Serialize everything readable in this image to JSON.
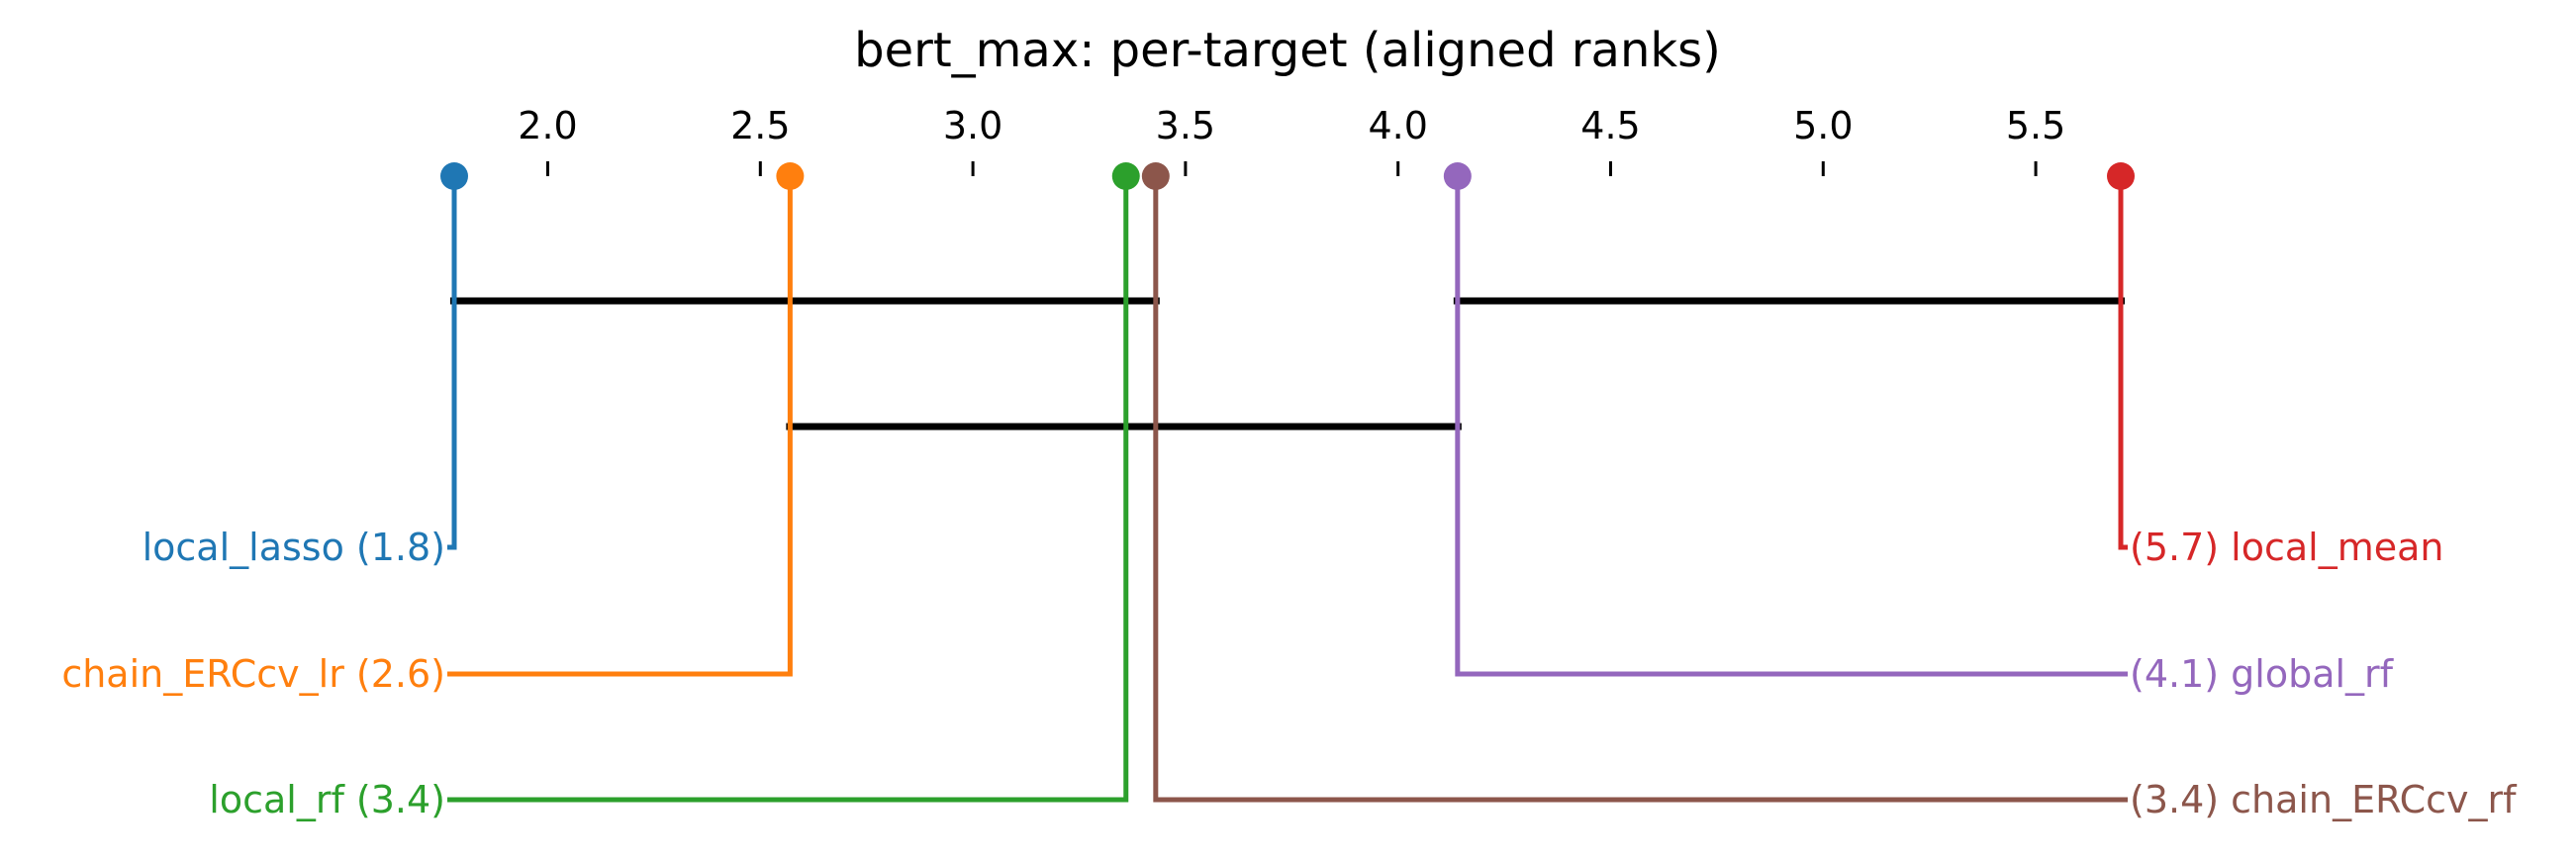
{
  "chart_data": {
    "type": "critical-difference",
    "title": "bert_max: per-target (aligned ranks)",
    "axis": {
      "range": [
        1.78,
        5.7
      ],
      "ticks": [
        2.0,
        2.5,
        3.0,
        3.5,
        4.0,
        4.5,
        5.0,
        5.5
      ],
      "tick_labels": [
        "2.0",
        "2.5",
        "3.0",
        "3.5",
        "4.0",
        "4.5",
        "5.0",
        "5.5"
      ]
    },
    "methods": [
      {
        "name": "local_lasso",
        "rank": 1.78,
        "label": "local_lasso (1.8)",
        "side": "left",
        "color": "#1f77b4"
      },
      {
        "name": "chain_ERCcv_lr",
        "rank": 2.57,
        "label": "chain_ERCcv_lr (2.6)",
        "side": "left",
        "color": "#ff7f0e"
      },
      {
        "name": "local_rf",
        "rank": 3.36,
        "label": "local_rf (3.4)",
        "side": "left",
        "color": "#2ca02c"
      },
      {
        "name": "chain_ERCcv_rf",
        "rank": 3.43,
        "label": "(3.4) chain_ERCcv_rf",
        "side": "right",
        "color": "#8c564b"
      },
      {
        "name": "global_rf",
        "rank": 4.14,
        "label": "(4.1) global_rf",
        "side": "right",
        "color": "#9467bd"
      },
      {
        "name": "local_mean",
        "rank": 5.7,
        "label": "(5.7) local_mean",
        "side": "right",
        "color": "#d62728"
      }
    ],
    "cliques": [
      {
        "from": 1.78,
        "to": 3.43
      },
      {
        "from": 4.14,
        "to": 5.7
      },
      {
        "from": 2.57,
        "to": 4.14
      }
    ],
    "clique_color": "#000000",
    "grid": false
  }
}
